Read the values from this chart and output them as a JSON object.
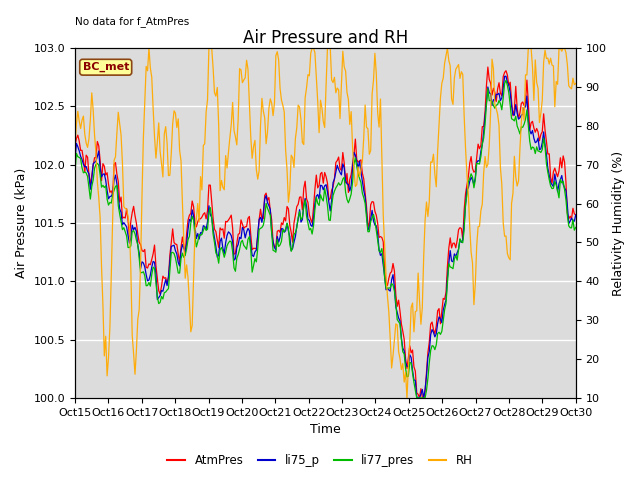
{
  "title": "Air Pressure and RH",
  "no_data_text": "No data for f_AtmPres",
  "label_text": "BC_met",
  "ylabel_left": "Air Pressure (kPa)",
  "ylabel_right": "Relativity Humidity (%)",
  "xlabel": "Time",
  "ylim_left": [
    100.0,
    103.0
  ],
  "ylim_right": [
    10,
    100
  ],
  "xtick_labels": [
    "Oct 15",
    "Oct 16",
    "Oct 17",
    "Oct 18",
    "Oct 19",
    "Oct 20",
    "Oct 21",
    "Oct 22",
    "Oct 23",
    "Oct 24",
    "Oct 25",
    "Oct 26",
    "Oct 27",
    "Oct 28",
    "Oct 29",
    "Oct 30"
  ],
  "colors": {
    "AtmPres": "#ff0000",
    "li75_p": "#0000cc",
    "li77_pres": "#00bb00",
    "RH": "#ffaa00",
    "background": "#dcdcdc",
    "label_box_bg": "#ffff99",
    "label_box_border": "#8b4513"
  },
  "legend_entries": [
    "AtmPres",
    "li75_p",
    "li77_pres",
    "RH"
  ],
  "title_fontsize": 12,
  "axis_label_fontsize": 9,
  "tick_fontsize": 8,
  "figsize": [
    6.4,
    4.8
  ],
  "dpi": 100
}
